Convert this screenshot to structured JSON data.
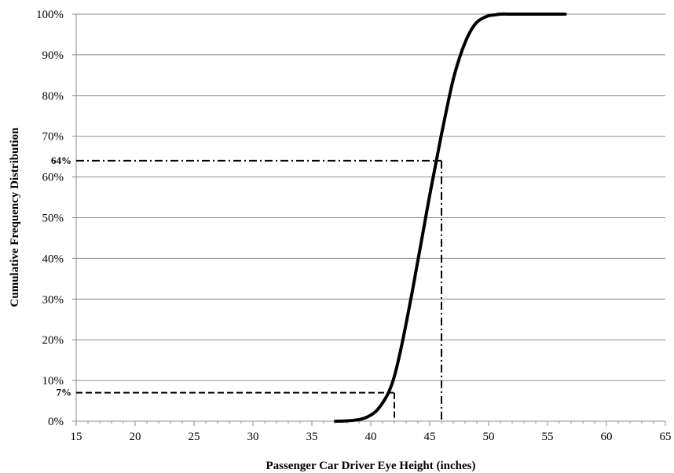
{
  "chart_data": {
    "type": "line",
    "title": "",
    "xlabel": "Passenger Car Driver Eye Height (inches)",
    "ylabel": "Cumulative Frequency Distribution",
    "xlim": [
      15,
      65
    ],
    "ylim": [
      0,
      100
    ],
    "x_ticks": [
      15,
      20,
      25,
      30,
      35,
      40,
      45,
      50,
      55,
      60,
      65
    ],
    "x_tick_labels": [
      "15",
      "20",
      "25",
      "30",
      "35",
      "40",
      "45",
      "50",
      "55",
      "60",
      "65"
    ],
    "y_ticks": [
      0,
      10,
      20,
      30,
      40,
      50,
      60,
      70,
      80,
      90,
      100
    ],
    "y_tick_labels": [
      "0%",
      "10%",
      "20%",
      "30%",
      "40%",
      "50%",
      "60%",
      "70%",
      "80%",
      "90%",
      "100%"
    ],
    "grid": "horizontal",
    "legend": "none",
    "series": [
      {
        "color": "#000000",
        "x": [
          37,
          38,
          39,
          39.5,
          40,
          40.5,
          41,
          41.5,
          42,
          42.5,
          43,
          43.5,
          44,
          44.5,
          45,
          45.5,
          46,
          46.5,
          47,
          47.5,
          48,
          48.5,
          49,
          49.5,
          50,
          50.5,
          51,
          52,
          53,
          54,
          55,
          56.5
        ],
        "values": [
          0,
          0.1,
          0.4,
          0.8,
          1.5,
          2.6,
          4.5,
          7,
          11,
          17,
          24,
          31.5,
          39.5,
          47.5,
          55.5,
          63,
          70.5,
          77.5,
          84,
          89,
          93,
          96,
          98,
          99,
          99.6,
          99.8,
          100,
          100,
          100,
          100,
          100,
          100
        ]
      }
    ],
    "annotations": [
      {
        "label": "7%",
        "x": 42,
        "y": 7,
        "style": "dashed"
      },
      {
        "label": "64%",
        "x": 46,
        "y": 64,
        "style": "dash-dot"
      }
    ]
  }
}
